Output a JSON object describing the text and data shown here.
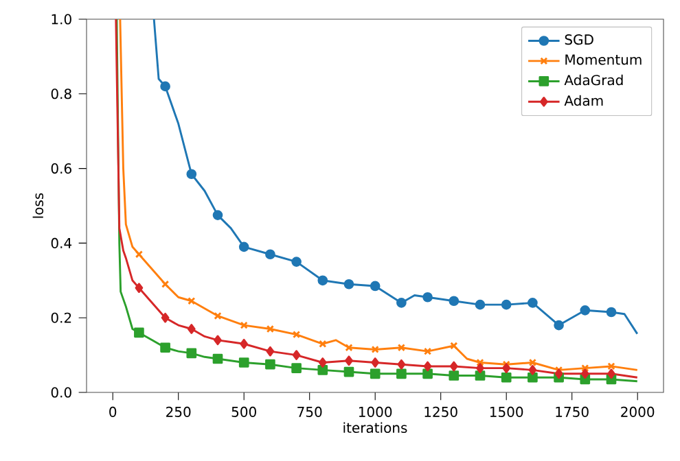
{
  "chart_data": {
    "type": "line",
    "xlabel": "iterations",
    "ylabel": "loss",
    "xlim": [
      -100,
      2099
    ],
    "ylim": [
      0,
      1
    ],
    "xticks": [
      0,
      250,
      500,
      750,
      1000,
      1250,
      1500,
      1750,
      2000
    ],
    "yticks": [
      {
        "value": 0,
        "label": "0.0"
      },
      {
        "value": 0.2,
        "label": "0.2"
      },
      {
        "value": 0.4,
        "label": "0.4"
      },
      {
        "value": 0.6,
        "label": "0.6"
      },
      {
        "value": 0.8,
        "label": "0.8"
      },
      {
        "value": 1,
        "label": "1.0"
      }
    ],
    "legend": "top right",
    "grid": false,
    "line_style": "solid",
    "series": [
      {
        "name": "SGD",
        "color": "#1f77b4",
        "marker": "circle",
        "x": [
          157,
          175,
          200,
          250,
          300,
          350,
          400,
          450,
          500,
          600,
          700,
          800,
          900,
          1000,
          1100,
          1150,
          1200,
          1300,
          1400,
          1500,
          1600,
          1700,
          1800,
          1900,
          1950,
          1999
        ],
        "values": [
          1.0,
          0.84,
          0.82,
          0.72,
          0.585,
          0.54,
          0.475,
          0.44,
          0.39,
          0.37,
          0.35,
          0.3,
          0.29,
          0.285,
          0.24,
          0.26,
          0.255,
          0.245,
          0.235,
          0.235,
          0.24,
          0.18,
          0.22,
          0.215,
          0.21,
          0.157
        ]
      },
      {
        "name": "Momentum",
        "color": "#ff7f0e",
        "marker": "cross",
        "x": [
          28,
          40,
          50,
          75,
          100,
          150,
          200,
          250,
          300,
          400,
          500,
          600,
          700,
          800,
          850,
          900,
          1000,
          1100,
          1200,
          1300,
          1350,
          1400,
          1500,
          1600,
          1700,
          1800,
          1900,
          1999
        ],
        "values": [
          1.0,
          0.6,
          0.45,
          0.39,
          0.37,
          0.33,
          0.29,
          0.255,
          0.245,
          0.205,
          0.18,
          0.17,
          0.155,
          0.13,
          0.14,
          0.12,
          0.115,
          0.12,
          0.11,
          0.125,
          0.09,
          0.08,
          0.075,
          0.08,
          0.06,
          0.065,
          0.07,
          0.06
        ]
      },
      {
        "name": "AdaGrad",
        "color": "#2ca02c",
        "marker": "square",
        "x": [
          15,
          25,
          30,
          50,
          75,
          100,
          150,
          200,
          250,
          300,
          350,
          400,
          450,
          500,
          600,
          700,
          800,
          900,
          1000,
          1100,
          1200,
          1300,
          1400,
          1500,
          1600,
          1700,
          1800,
          1900,
          1999
        ],
        "values": [
          1.0,
          0.4,
          0.27,
          0.23,
          0.17,
          0.16,
          0.14,
          0.12,
          0.11,
          0.105,
          0.095,
          0.09,
          0.085,
          0.08,
          0.075,
          0.065,
          0.06,
          0.055,
          0.05,
          0.05,
          0.05,
          0.045,
          0.045,
          0.04,
          0.04,
          0.04,
          0.035,
          0.035,
          0.03
        ]
      },
      {
        "name": "Adam",
        "color": "#d62728",
        "marker": "diamond",
        "x": [
          12,
          25,
          40,
          50,
          75,
          100,
          150,
          200,
          250,
          300,
          350,
          400,
          450,
          500,
          600,
          700,
          800,
          900,
          1000,
          1100,
          1200,
          1300,
          1400,
          1500,
          1600,
          1700,
          1800,
          1900,
          1999
        ],
        "values": [
          1.0,
          0.44,
          0.38,
          0.36,
          0.3,
          0.28,
          0.24,
          0.2,
          0.18,
          0.17,
          0.15,
          0.14,
          0.135,
          0.13,
          0.11,
          0.1,
          0.08,
          0.085,
          0.08,
          0.075,
          0.07,
          0.07,
          0.065,
          0.065,
          0.06,
          0.05,
          0.05,
          0.05,
          0.04
        ]
      }
    ]
  }
}
